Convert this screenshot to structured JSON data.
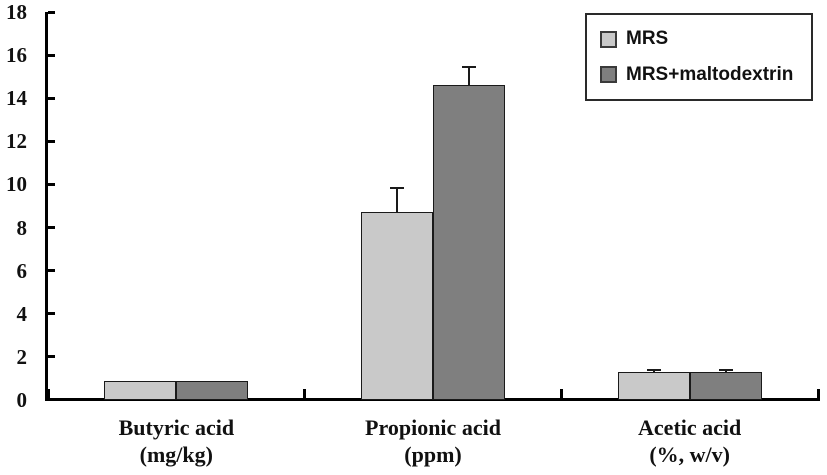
{
  "chart_data": {
    "type": "bar",
    "title": "",
    "categories": [
      {
        "line1": "Butyric acid",
        "line2": "(mg/kg)"
      },
      {
        "line1": "Propionic acid",
        "line2": "(ppm)"
      },
      {
        "line1": "Acetic acid",
        "line2": "(%, w/v)"
      }
    ],
    "series": [
      {
        "name": "MRS",
        "color": "#c9c9c9",
        "values": [
          0.9,
          8.7,
          1.3
        ],
        "errors_plus": [
          0,
          1.2,
          0.15
        ]
      },
      {
        "name": "MRS+maltodextrin",
        "color": "#7f7f7f",
        "values": [
          0.9,
          14.6,
          1.3
        ],
        "errors_plus": [
          0,
          0.9,
          0.15
        ]
      }
    ],
    "ylim": [
      0,
      18
    ],
    "ytick_step": 2,
    "yticks": [
      0,
      2,
      4,
      6,
      8,
      10,
      12,
      14,
      16,
      18
    ],
    "grid": false,
    "legend_position": "top-right",
    "background": "#ffffff",
    "axis_color": "#000000",
    "bar_border_color": "#1a1a1a",
    "error_bar_color": "#1a1a1a"
  }
}
